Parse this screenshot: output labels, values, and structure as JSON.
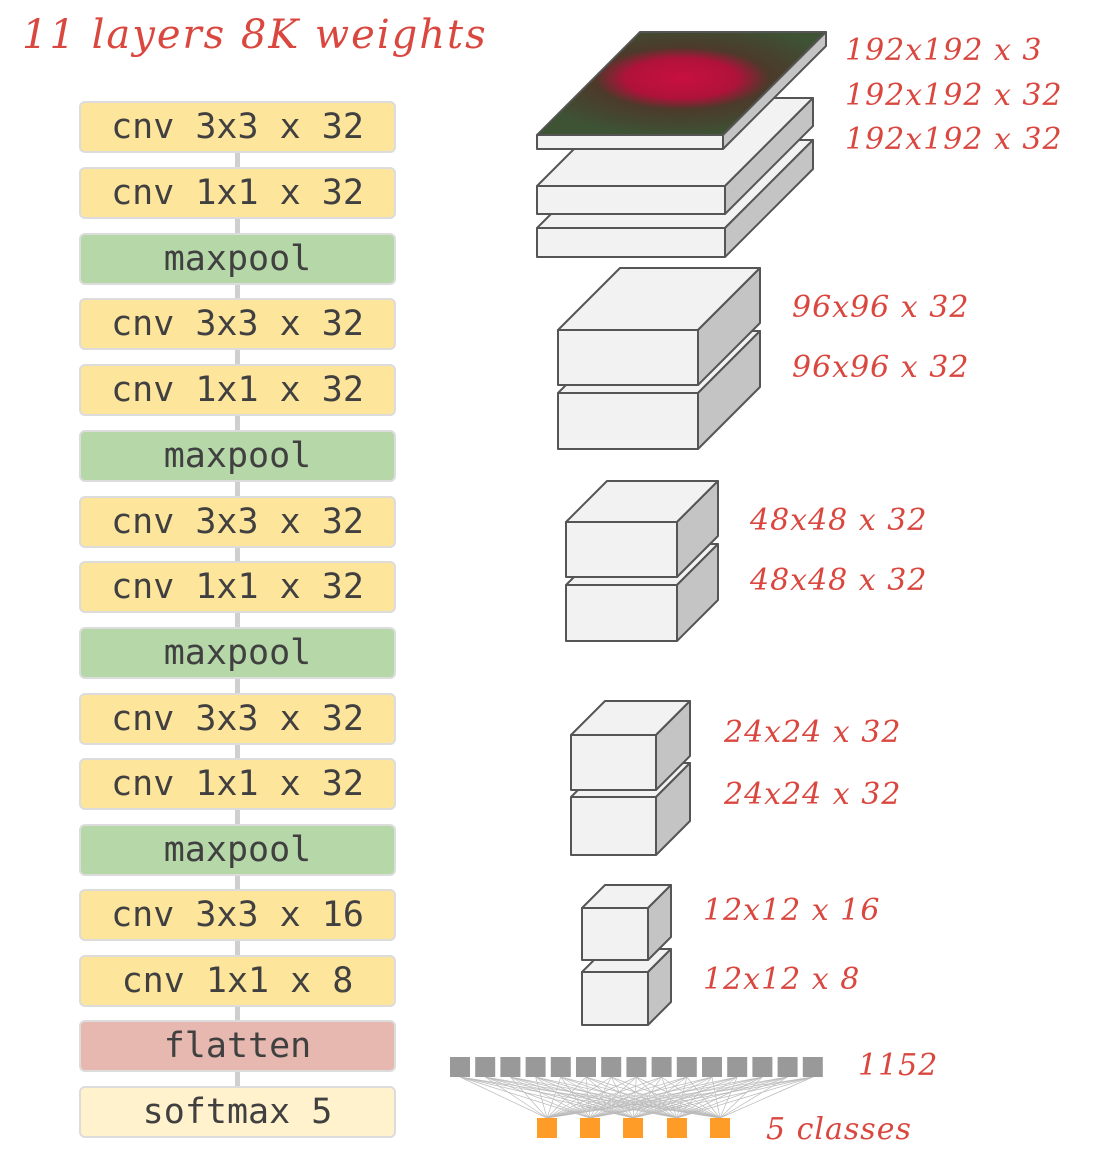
{
  "title": "11 layers 8K weights",
  "layers": [
    {
      "label": "cnv 3x3 x 32",
      "kind": "conv"
    },
    {
      "label": "cnv 1x1 x 32",
      "kind": "conv"
    },
    {
      "label": "maxpool",
      "kind": "pool"
    },
    {
      "label": "cnv 3x3 x 32",
      "kind": "conv"
    },
    {
      "label": "cnv 1x1 x 32",
      "kind": "conv"
    },
    {
      "label": "maxpool",
      "kind": "pool"
    },
    {
      "label": "cnv 3x3 x 32",
      "kind": "conv"
    },
    {
      "label": "cnv 1x1 x 32",
      "kind": "conv"
    },
    {
      "label": "maxpool",
      "kind": "pool"
    },
    {
      "label": "cnv 3x3 x 32",
      "kind": "conv"
    },
    {
      "label": "cnv 1x1 x 32",
      "kind": "conv"
    },
    {
      "label": "maxpool",
      "kind": "pool"
    },
    {
      "label": "cnv 3x3 x 16",
      "kind": "conv"
    },
    {
      "label": "cnv 1x1 x 8",
      "kind": "conv"
    },
    {
      "label": "flatten",
      "kind": "flat"
    },
    {
      "label": "softmax 5",
      "kind": "soft"
    }
  ],
  "shape_labels": [
    "192x192 x 3",
    "192x192 x 32",
    "192x192 x 32",
    "96x96 x 32",
    "96x96 x 32",
    "48x48 x 32",
    "48x48 x 32",
    "24x24 x 32",
    "24x24 x 32",
    "12x12 x 16",
    "12x12 x 8",
    "1152",
    "5 classes"
  ],
  "colors": {
    "conv": "#fee59c",
    "pool": "#b6d7a8",
    "flatten": "#e6b8af",
    "softmax": "#fff2cc",
    "annotation": "#d9473f",
    "dense_node": "#999999",
    "class_node": "#ff9c27"
  },
  "input_image": "rose photo"
}
